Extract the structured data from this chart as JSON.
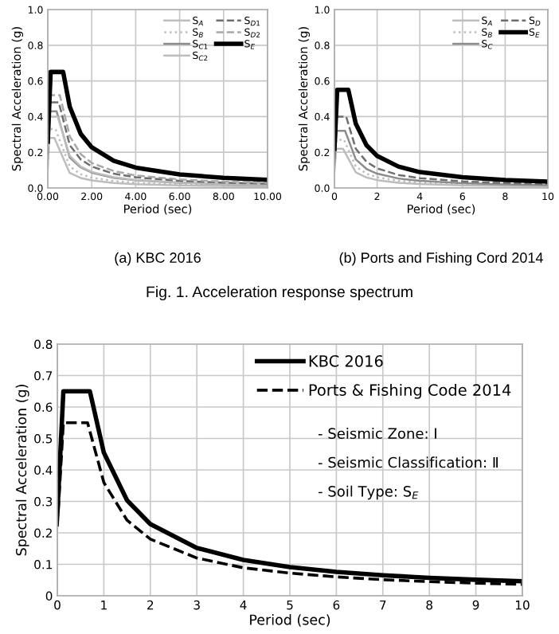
{
  "chart_data": [
    {
      "type": "line",
      "title": "(a) KBC 2016",
      "xlabel": "Period (sec)",
      "ylabel": "Spectral Acceleration (g)",
      "annotations": [
        "Fig. 1. Acceleration response spectrum"
      ],
      "xlim": [
        0,
        10
      ],
      "ylim": [
        0,
        1.0
      ],
      "xticks": [
        {
          "value": 0,
          "label": "0.00"
        },
        {
          "value": 2,
          "label": "2.00"
        },
        {
          "value": 4,
          "label": "4.00"
        },
        {
          "value": 6,
          "label": "6.00"
        },
        {
          "value": 8,
          "label": "8.00"
        },
        {
          "value": 10,
          "label": "10.00"
        }
      ],
      "yticks": [
        {
          "value": 0,
          "label": "0.0"
        },
        {
          "value": 0.2,
          "label": "0.2"
        },
        {
          "value": 0.4,
          "label": "0.4"
        },
        {
          "value": 0.6,
          "label": "0.6"
        },
        {
          "value": 0.8,
          "label": "0.8"
        },
        {
          "value": 1.0,
          "label": "1.0"
        }
      ],
      "grid": true,
      "legend": "top right",
      "marker": "none",
      "series": [
        {
          "name": "S$_{A}$",
          "color": "#bdbdbd",
          "line_style": "solid",
          "x": [
            0,
            0.06,
            0.3,
            1,
            1.5,
            2,
            3,
            4,
            6,
            8,
            10
          ],
          "values": [
            0.11,
            0.28,
            0.28,
            0.084,
            0.056,
            0.042,
            0.028,
            0.021,
            0.014,
            0.011,
            0.008
          ]
        },
        {
          "name": "S$_{B}$",
          "color": "#bdbdbd",
          "line_style": "dotted",
          "x": [
            0,
            0.07,
            0.35,
            1,
            1.5,
            2,
            3,
            4,
            6,
            8,
            10
          ],
          "values": [
            0.13,
            0.33,
            0.33,
            0.12,
            0.077,
            0.058,
            0.039,
            0.029,
            0.019,
            0.014,
            0.012
          ]
        },
        {
          "name": "S$_{C1}$",
          "color": "#8c8c8c",
          "line_style": "solid",
          "x": [
            0,
            0.08,
            0.4,
            1,
            1.5,
            2,
            3,
            4,
            6,
            8,
            10
          ],
          "values": [
            0.17,
            0.43,
            0.43,
            0.17,
            0.115,
            0.086,
            0.057,
            0.043,
            0.029,
            0.022,
            0.017
          ]
        },
        {
          "name": "S$_{C2}$",
          "color": "#bdbdbd",
          "line_style": "solid",
          "x": [
            0,
            0.09,
            0.45,
            1,
            1.5,
            2,
            3,
            4,
            6,
            8,
            10
          ],
          "values": [
            0.16,
            0.4,
            0.4,
            0.18,
            0.12,
            0.09,
            0.06,
            0.045,
            0.03,
            0.023,
            0.018
          ]
        },
        {
          "name": "S$_{D1}$",
          "color": "#6e6e6e",
          "line_style": "dashed",
          "x": [
            0,
            0.1,
            0.5,
            1,
            1.5,
            2,
            3,
            4,
            6,
            8,
            10
          ],
          "values": [
            0.19,
            0.48,
            0.48,
            0.24,
            0.16,
            0.12,
            0.08,
            0.06,
            0.04,
            0.03,
            0.024
          ]
        },
        {
          "name": "S$_{D2}$",
          "color": "#a8a8a8",
          "line_style": "dashed",
          "x": [
            0,
            0.11,
            0.55,
            1,
            1.5,
            2,
            3,
            4,
            6,
            8,
            10
          ],
          "values": [
            0.21,
            0.52,
            0.52,
            0.29,
            0.19,
            0.14,
            0.095,
            0.07,
            0.048,
            0.036,
            0.029
          ]
        },
        {
          "name": "S$_{E}$",
          "color": "#000000",
          "line_style": "solid",
          "x": [
            0,
            0.13,
            0.7,
            1,
            1.5,
            2,
            3,
            4,
            6,
            8,
            10
          ],
          "values": [
            0.26,
            0.65,
            0.65,
            0.455,
            0.303,
            0.228,
            0.152,
            0.114,
            0.076,
            0.057,
            0.046
          ]
        }
      ]
    },
    {
      "type": "line",
      "title": "(b) Ports and Fishing Cord 2014",
      "xlabel": "Period (sec)",
      "ylabel": "Spectral Acceleration (g)",
      "xlim": [
        0,
        10
      ],
      "ylim": [
        0,
        1.0
      ],
      "xticks": [
        0,
        2,
        4,
        6,
        8,
        10
      ],
      "yticks": [
        {
          "value": 0,
          "label": "0.0"
        },
        {
          "value": 0.2,
          "label": "0.2"
        },
        {
          "value": 0.4,
          "label": "0.4"
        },
        {
          "value": 0.6,
          "label": "0.6"
        },
        {
          "value": 0.8,
          "label": "0.8"
        },
        {
          "value": 1.0,
          "label": "1.0"
        }
      ],
      "grid": true,
      "legend": "top right",
      "marker": "none",
      "series": [
        {
          "name": "S$_{A}$",
          "color": "#bdbdbd",
          "line_style": "solid",
          "x": [
            0,
            0.08,
            0.4,
            1,
            1.5,
            2,
            3,
            4,
            6,
            8,
            10
          ],
          "values": [
            0.09,
            0.22,
            0.22,
            0.088,
            0.059,
            0.044,
            0.029,
            0.022,
            0.015,
            0.011,
            0.009
          ]
        },
        {
          "name": "S$_{B}$",
          "color": "#bdbdbd",
          "line_style": "dotted",
          "x": [
            0,
            0.09,
            0.45,
            1,
            1.5,
            2,
            3,
            4,
            6,
            8,
            10
          ],
          "values": [
            0.11,
            0.27,
            0.27,
            0.12,
            0.08,
            0.06,
            0.04,
            0.03,
            0.02,
            0.015,
            0.012
          ]
        },
        {
          "name": "S$_{C}$",
          "color": "#8c8c8c",
          "line_style": "solid",
          "x": [
            0,
            0.1,
            0.5,
            1,
            1.5,
            2,
            3,
            4,
            6,
            8,
            10
          ],
          "values": [
            0.13,
            0.32,
            0.32,
            0.16,
            0.107,
            0.08,
            0.053,
            0.04,
            0.027,
            0.02,
            0.016
          ]
        },
        {
          "name": "S$_{D}$",
          "color": "#6e6e6e",
          "line_style": "dashed",
          "x": [
            0,
            0.11,
            0.55,
            1,
            1.5,
            2,
            3,
            4,
            6,
            8,
            10
          ],
          "values": [
            0.16,
            0.4,
            0.4,
            0.22,
            0.147,
            0.11,
            0.073,
            0.055,
            0.037,
            0.028,
            0.022
          ]
        },
        {
          "name": "S$_{E}$",
          "color": "#000000",
          "line_style": "solid",
          "x": [
            0,
            0.13,
            0.65,
            1,
            1.5,
            2,
            3,
            4,
            6,
            8,
            10
          ],
          "values": [
            0.22,
            0.55,
            0.55,
            0.36,
            0.24,
            0.18,
            0.12,
            0.089,
            0.06,
            0.045,
            0.036
          ]
        }
      ]
    },
    {
      "type": "line",
      "xlabel": "Period (sec)",
      "ylabel": "Spectral Acceleration (g)",
      "annotations": [
        "- Seismic Zone: Ⅰ",
        "- Seismic Classification: Ⅱ",
        "- Soil Type: S$_{E}$"
      ],
      "xlim": [
        0,
        10
      ],
      "ylim": [
        0,
        0.8
      ],
      "xticks": [
        0,
        1,
        2,
        3,
        4,
        5,
        6,
        7,
        8,
        9,
        10
      ],
      "yticks": [
        0,
        0.1,
        0.2,
        0.3,
        0.4,
        0.5,
        0.6,
        0.7,
        0.8
      ],
      "grid": true,
      "legend": "top right",
      "marker": "none",
      "series": [
        {
          "name": "KBC 2016",
          "color": "#000000",
          "line_style": "solid",
          "x": [
            0,
            0.13,
            0.7,
            1,
            1.5,
            2,
            3,
            4,
            5,
            6,
            7,
            8,
            9,
            10
          ],
          "values": [
            0.26,
            0.65,
            0.65,
            0.455,
            0.303,
            0.228,
            0.152,
            0.114,
            0.091,
            0.076,
            0.065,
            0.057,
            0.051,
            0.046
          ]
        },
        {
          "name": "Ports & Fishing Code 2014",
          "color": "#000000",
          "line_style": "dashed",
          "x": [
            0,
            0.13,
            0.65,
            1,
            1.5,
            2,
            3,
            4,
            5,
            6,
            7,
            8,
            9,
            10
          ],
          "values": [
            0.22,
            0.55,
            0.55,
            0.36,
            0.24,
            0.18,
            0.12,
            0.089,
            0.072,
            0.06,
            0.051,
            0.045,
            0.04,
            0.036
          ]
        }
      ]
    }
  ]
}
